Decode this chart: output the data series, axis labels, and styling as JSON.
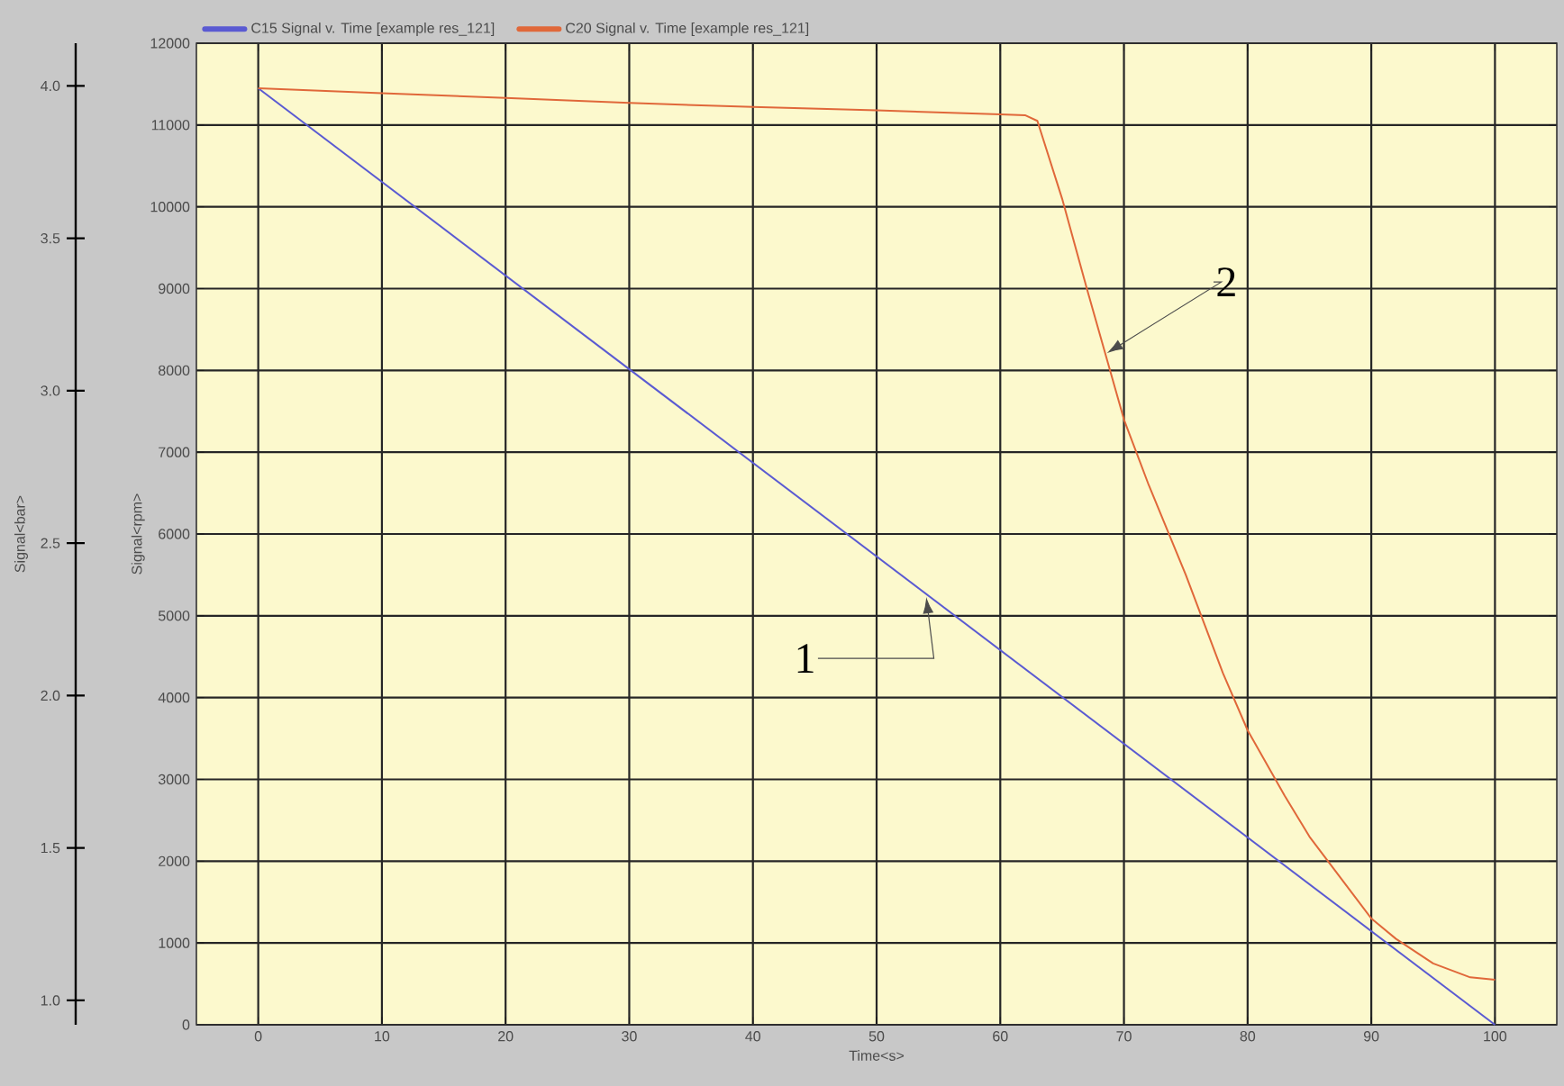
{
  "chart_data": {
    "type": "line",
    "xlabel": "Time<s>",
    "ylabel": "Signal<rpm>",
    "y2label": "Signal<bar>",
    "x": [
      0,
      10,
      20,
      30,
      40,
      50,
      60,
      62,
      63,
      65,
      67,
      70,
      72,
      75,
      78,
      80,
      83,
      85,
      88,
      90,
      92,
      95,
      98,
      100
    ],
    "series": [
      {
        "name": "C15 Signal v. Time [example res_121]",
        "color": "#5a5ad2",
        "x": [
          0,
          100
        ],
        "values": [
          11450,
          0
        ]
      },
      {
        "name": "C20 Signal v. Time [example res_121]",
        "color": "#e0683a",
        "values": [
          11450,
          11390,
          11330,
          11270,
          11220,
          11180,
          11130,
          11120,
          11050,
          10100,
          9000,
          7400,
          6600,
          5500,
          4300,
          3600,
          2800,
          2300,
          1700,
          1300,
          1050,
          750,
          580,
          550
        ]
      }
    ],
    "xlim": [
      -5,
      105
    ],
    "xticks": [
      0,
      10,
      20,
      30,
      40,
      50,
      60,
      70,
      80,
      90,
      100
    ],
    "ylim": [
      0,
      12000
    ],
    "yticks": [
      0,
      1000,
      2000,
      3000,
      4000,
      5000,
      6000,
      7000,
      8000,
      9000,
      10000,
      11000,
      12000
    ],
    "y2lim": [
      0.92,
      4.14
    ],
    "y2ticks": [
      {
        "value": 1,
        "label": "1.0"
      },
      {
        "value": 1.5,
        "label": "1.5"
      },
      {
        "value": 2,
        "label": "2.0"
      },
      {
        "value": 2.5,
        "label": "2.5"
      },
      {
        "value": 3,
        "label": "3.0"
      },
      {
        "value": 3.5,
        "label": "3.5"
      },
      {
        "value": 4,
        "label": "4.0"
      }
    ],
    "annotations": [
      {
        "text": "1",
        "x": 54,
        "y": 5250
      },
      {
        "text": "2",
        "x": 68.5,
        "y": 8200
      }
    ],
    "grid": true,
    "legend": "top",
    "marker": "none",
    "line_style": "solid"
  }
}
